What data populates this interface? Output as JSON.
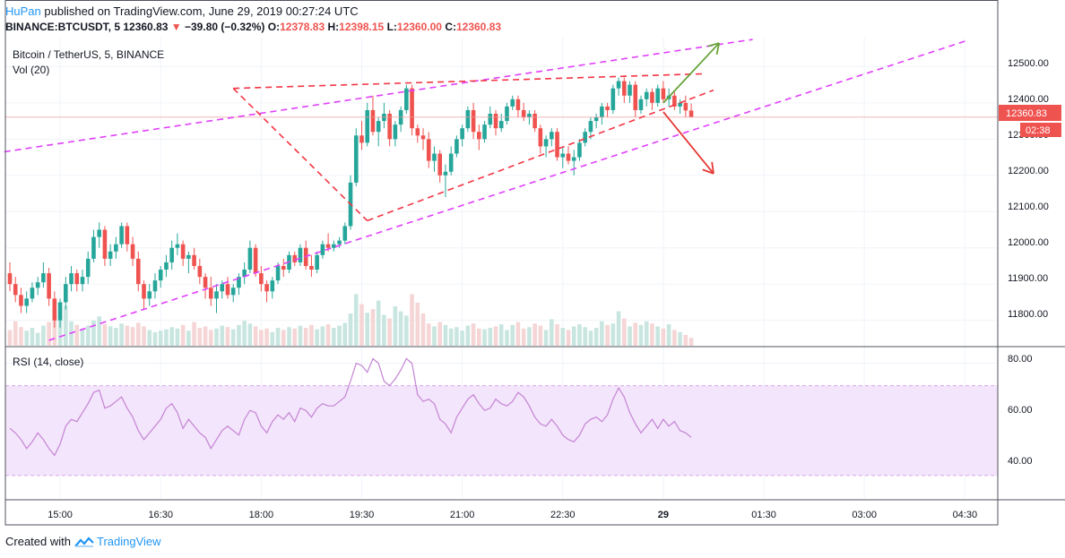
{
  "header": {
    "author": "HuPan",
    "published": "published on TradingView.com, June 29, 2019 00:27:24 UTC",
    "symbol": "BINANCE:BTCUSDT, 5",
    "last": "12360.83",
    "change_arrow": "▼",
    "change": "−39.80 (−0.32%)",
    "o_label": "O:",
    "o": "12378.83",
    "h_label": "H:",
    "h": "12398.15",
    "l_label": "L:",
    "l": "12360.00",
    "c_label": "C:",
    "c": "12360.83"
  },
  "panel": {
    "title": "Bitcoin / TetherUS, 5, BINANCE",
    "vol_label": "Vol (20)",
    "rsi_label": "RSI (14, close)"
  },
  "price_axis": {
    "ticks": [
      "12500.00",
      "12400.00",
      "12300.00",
      "12200.00",
      "12100.00",
      "12000.00",
      "11900.00",
      "11800.00"
    ],
    "last_price": "12360.83",
    "countdown": "02:38"
  },
  "rsi_axis": {
    "ticks": [
      "80.00",
      "60.00",
      "40.00"
    ]
  },
  "time_axis": {
    "ticks": [
      "15:00",
      "16:30",
      "18:00",
      "19:30",
      "21:00",
      "22:30",
      "29",
      "01:30",
      "03:00",
      "04:30"
    ]
  },
  "footer": {
    "created_with": "Created with",
    "brand": "TradingView"
  },
  "colors": {
    "up": "#26a69a",
    "down": "#ef5350",
    "up_vol": "#c8e6df",
    "down_vol": "#f5d5d5",
    "trend_magenta": "#e040fb",
    "trend_red": "#f23645",
    "arrow_green": "#66a33a",
    "arrow_red": "#e53935",
    "rsi_line": "#c483d3",
    "rsi_band": "#f3e5fb",
    "grid": "#f0f3fa"
  },
  "chart_data": {
    "type": "candlestick",
    "title": "Bitcoin / TetherUS, 5, BINANCE",
    "interval_minutes": 5,
    "price_range": [
      11730,
      12580
    ],
    "rsi_range": [
      20,
      87
    ],
    "rsi_bands": [
      30,
      70
    ],
    "ohlc": [
      [
        11930,
        11960,
        11880,
        11900
      ],
      [
        11900,
        11920,
        11850,
        11870
      ],
      [
        11870,
        11890,
        11820,
        11840
      ],
      [
        11840,
        11880,
        11820,
        11860
      ],
      [
        11860,
        11905,
        11850,
        11890
      ],
      [
        11890,
        11920,
        11870,
        11905
      ],
      [
        11905,
        11960,
        11890,
        11930
      ],
      [
        11930,
        11945,
        11840,
        11860
      ],
      [
        11860,
        11880,
        11780,
        11800
      ],
      [
        11800,
        11860,
        11780,
        11850
      ],
      [
        11850,
        11920,
        11830,
        11900
      ],
      [
        11900,
        11950,
        11880,
        11930
      ],
      [
        11930,
        11940,
        11880,
        11900
      ],
      [
        11900,
        11940,
        11880,
        11920
      ],
      [
        11920,
        11990,
        11900,
        11970
      ],
      [
        11970,
        12050,
        11960,
        12030
      ],
      [
        12030,
        12070,
        12000,
        12050
      ],
      [
        12050,
        12060,
        11950,
        11970
      ],
      [
        11970,
        12010,
        11950,
        11990
      ],
      [
        11990,
        12030,
        11970,
        12010
      ],
      [
        12010,
        12070,
        12000,
        12060
      ],
      [
        12060,
        12070,
        11990,
        12010
      ],
      [
        12010,
        12030,
        11950,
        11970
      ],
      [
        11970,
        11990,
        11880,
        11900
      ],
      [
        11900,
        11910,
        11830,
        11860
      ],
      [
        11860,
        11900,
        11840,
        11880
      ],
      [
        11880,
        11930,
        11860,
        11910
      ],
      [
        11910,
        11950,
        11890,
        11940
      ],
      [
        11940,
        11980,
        11920,
        11960
      ],
      [
        11960,
        12020,
        11940,
        12000
      ],
      [
        12000,
        12040,
        11980,
        12010
      ],
      [
        12010,
        12020,
        11950,
        11970
      ],
      [
        11970,
        11990,
        11930,
        11980
      ],
      [
        11980,
        12000,
        11940,
        11950
      ],
      [
        11950,
        11970,
        11900,
        11920
      ],
      [
        11920,
        11930,
        11860,
        11890
      ],
      [
        11890,
        11920,
        11840,
        11860
      ],
      [
        11860,
        11900,
        11820,
        11880
      ],
      [
        11880,
        11910,
        11860,
        11900
      ],
      [
        11900,
        11920,
        11860,
        11870
      ],
      [
        11870,
        11900,
        11850,
        11890
      ],
      [
        11890,
        11930,
        11870,
        11920
      ],
      [
        11920,
        11960,
        11900,
        11940
      ],
      [
        11940,
        12020,
        11930,
        12000
      ],
      [
        12000,
        12010,
        11920,
        11930
      ],
      [
        11930,
        11950,
        11880,
        11900
      ],
      [
        11900,
        11910,
        11850,
        11880
      ],
      [
        11880,
        11920,
        11860,
        11910
      ],
      [
        11910,
        11960,
        11900,
        11950
      ],
      [
        11950,
        11970,
        11920,
        11940
      ],
      [
        11940,
        11990,
        11930,
        11980
      ],
      [
        11980,
        11990,
        11950,
        11960
      ],
      [
        11960,
        12010,
        11950,
        12000
      ],
      [
        12000,
        12020,
        11940,
        11950
      ],
      [
        11950,
        11980,
        11920,
        11940
      ],
      [
        11940,
        11990,
        11930,
        11980
      ],
      [
        11980,
        12020,
        11970,
        12010
      ],
      [
        12010,
        12040,
        11990,
        12000
      ],
      [
        12000,
        12020,
        11990,
        12010
      ],
      [
        12010,
        12030,
        12000,
        12020
      ],
      [
        12020,
        12070,
        12010,
        12060
      ],
      [
        12060,
        12200,
        12050,
        12180
      ],
      [
        12180,
        12330,
        12170,
        12310
      ],
      [
        12310,
        12350,
        12270,
        12290
      ],
      [
        12290,
        12400,
        12280,
        12380
      ],
      [
        12380,
        12420,
        12310,
        12320
      ],
      [
        12320,
        12360,
        12280,
        12350
      ],
      [
        12350,
        12400,
        12330,
        12370
      ],
      [
        12370,
        12380,
        12280,
        12300
      ],
      [
        12300,
        12350,
        12280,
        12340
      ],
      [
        12340,
        12390,
        12320,
        12380
      ],
      [
        12380,
        12450,
        12370,
        12440
      ],
      [
        12440,
        12450,
        12310,
        12330
      ],
      [
        12330,
        12340,
        12290,
        12310
      ],
      [
        12310,
        12330,
        12270,
        12300
      ],
      [
        12300,
        12320,
        12220,
        12240
      ],
      [
        12240,
        12280,
        12210,
        12260
      ],
      [
        12260,
        12270,
        12180,
        12200
      ],
      [
        12200,
        12230,
        12140,
        12210
      ],
      [
        12210,
        12280,
        12200,
        12260
      ],
      [
        12260,
        12310,
        12250,
        12300
      ],
      [
        12300,
        12340,
        12280,
        12330
      ],
      [
        12330,
        12390,
        12320,
        12380
      ],
      [
        12380,
        12400,
        12300,
        12320
      ],
      [
        12320,
        12340,
        12270,
        12300
      ],
      [
        12300,
        12350,
        12290,
        12340
      ],
      [
        12340,
        12390,
        12330,
        12370
      ],
      [
        12370,
        12380,
        12310,
        12330
      ],
      [
        12330,
        12370,
        12320,
        12350
      ],
      [
        12350,
        12400,
        12340,
        12390
      ],
      [
        12390,
        12420,
        12380,
        12410
      ],
      [
        12410,
        12420,
        12360,
        12380
      ],
      [
        12380,
        12400,
        12350,
        12360
      ],
      [
        12360,
        12380,
        12340,
        12370
      ],
      [
        12370,
        12380,
        12320,
        12330
      ],
      [
        12330,
        12340,
        12260,
        12280
      ],
      [
        12280,
        12310,
        12250,
        12300
      ],
      [
        12300,
        12330,
        12280,
        12320
      ],
      [
        12320,
        12330,
        12240,
        12250
      ],
      [
        12250,
        12280,
        12220,
        12260
      ],
      [
        12260,
        12280,
        12230,
        12240
      ],
      [
        12240,
        12270,
        12200,
        12250
      ],
      [
        12250,
        12300,
        12240,
        12290
      ],
      [
        12290,
        12330,
        12280,
        12320
      ],
      [
        12320,
        12360,
        12300,
        12350
      ],
      [
        12350,
        12370,
        12330,
        12360
      ],
      [
        12360,
        12400,
        12340,
        12390
      ],
      [
        12390,
        12400,
        12360,
        12380
      ],
      [
        12380,
        12450,
        12370,
        12440
      ],
      [
        12440,
        12470,
        12420,
        12460
      ],
      [
        12460,
        12470,
        12400,
        12420
      ],
      [
        12420,
        12460,
        12400,
        12450
      ],
      [
        12450,
        12460,
        12360,
        12380
      ],
      [
        12380,
        12420,
        12370,
        12410
      ],
      [
        12410,
        12440,
        12390,
        12430
      ],
      [
        12430,
        12440,
        12380,
        12400
      ],
      [
        12400,
        12450,
        12390,
        12440
      ],
      [
        12440,
        12460,
        12400,
        12410
      ],
      [
        12410,
        12440,
        12390,
        12420
      ],
      [
        12420,
        12430,
        12380,
        12390
      ],
      [
        12390,
        12410,
        12370,
        12400
      ],
      [
        12400,
        12420,
        12360,
        12379
      ],
      [
        12378.83,
        12398.15,
        12360,
        12360.83
      ]
    ],
    "volume_relative": [
      0.22,
      0.34,
      0.26,
      0.21,
      0.25,
      0.18,
      0.28,
      0.33,
      0.48,
      0.37,
      0.56,
      0.34,
      0.29,
      0.24,
      0.28,
      0.35,
      0.41,
      0.3,
      0.27,
      0.25,
      0.31,
      0.28,
      0.26,
      0.32,
      0.27,
      0.22,
      0.19,
      0.21,
      0.23,
      0.26,
      0.24,
      0.29,
      0.21,
      0.33,
      0.25,
      0.27,
      0.22,
      0.24,
      0.28,
      0.26,
      0.23,
      0.29,
      0.35,
      0.31,
      0.27,
      0.22,
      0.24,
      0.19,
      0.25,
      0.22,
      0.26,
      0.24,
      0.28,
      0.25,
      0.29,
      0.23,
      0.27,
      0.3,
      0.25,
      0.28,
      0.32,
      0.45,
      0.72,
      0.58,
      0.46,
      0.51,
      0.63,
      0.43,
      0.38,
      0.55,
      0.48,
      0.42,
      0.72,
      0.6,
      0.45,
      0.31,
      0.27,
      0.33,
      0.29,
      0.24,
      0.26,
      0.21,
      0.28,
      0.31,
      0.24,
      0.23,
      0.25,
      0.27,
      0.3,
      0.22,
      0.29,
      0.33,
      0.24,
      0.26,
      0.31,
      0.28,
      0.22,
      0.37,
      0.3,
      0.25,
      0.22,
      0.27,
      0.3,
      0.26,
      0.21,
      0.25,
      0.34,
      0.29,
      0.31,
      0.48,
      0.38,
      0.27,
      0.32,
      0.29,
      0.34,
      0.31,
      0.27,
      0.24,
      0.3,
      0.22,
      0.19,
      0.15,
      0.11
    ],
    "rsi": [
      51,
      49,
      46,
      42,
      45,
      49,
      46,
      42,
      39,
      44,
      52,
      55,
      54,
      58,
      62,
      67,
      68,
      60,
      61,
      63,
      65,
      60,
      56,
      50,
      46,
      49,
      52,
      55,
      60,
      62,
      58,
      51,
      55,
      52,
      49,
      47,
      42,
      46,
      50,
      52,
      50,
      48,
      55,
      59,
      58,
      52,
      49,
      54,
      57,
      55,
      58,
      54,
      60,
      59,
      56,
      60,
      62,
      61,
      61,
      63,
      65,
      72,
      80,
      79,
      76,
      82,
      80,
      72,
      70,
      73,
      77,
      82,
      80,
      66,
      63,
      64,
      62,
      55,
      53,
      49,
      56,
      60,
      64,
      66,
      62,
      59,
      60,
      64,
      62,
      61,
      63,
      67,
      65,
      61,
      56,
      53,
      52,
      55,
      52,
      48,
      46,
      45,
      48,
      53,
      55,
      56,
      54,
      57,
      64,
      69,
      65,
      58,
      53,
      49,
      52,
      55,
      51,
      55,
      52,
      54,
      50,
      49,
      47
    ],
    "time_ticks": [
      "15:00",
      "16:30",
      "18:00",
      "19:30",
      "21:00",
      "22:30",
      "29",
      "01:30",
      "03:00",
      "04:30"
    ],
    "time_tick_candle_index": [
      9,
      27,
      45,
      63,
      81,
      99,
      117,
      135,
      153,
      171
    ],
    "trendlines": [
      {
        "name": "upper-channel",
        "style": "magenta-dash",
        "from": [
          -1,
          12265
        ],
        "to": [
          133,
          12575
        ]
      },
      {
        "name": "lower-channel",
        "style": "magenta-dash",
        "from": [
          7,
          11745
        ],
        "to": [
          171,
          12570
        ]
      },
      {
        "name": "wedge-top",
        "style": "red-dash",
        "from": [
          40,
          12440
        ],
        "to": [
          124,
          12480
        ]
      },
      {
        "name": "wedge-bottom",
        "style": "red-dash",
        "from": [
          64,
          12075
        ],
        "to": [
          126,
          12435
        ]
      },
      {
        "name": "wedge-left",
        "style": "red-dash",
        "from": [
          40,
          12440
        ],
        "to": [
          64,
          12075
        ]
      }
    ],
    "arrows": [
      {
        "name": "bullish-arrow",
        "color": "green",
        "from": [
          117,
          12400
        ],
        "to": [
          127,
          12565
        ]
      },
      {
        "name": "bearish-arrow",
        "color": "red",
        "from": [
          117,
          12375
        ],
        "to": [
          126,
          12205
        ]
      }
    ]
  }
}
